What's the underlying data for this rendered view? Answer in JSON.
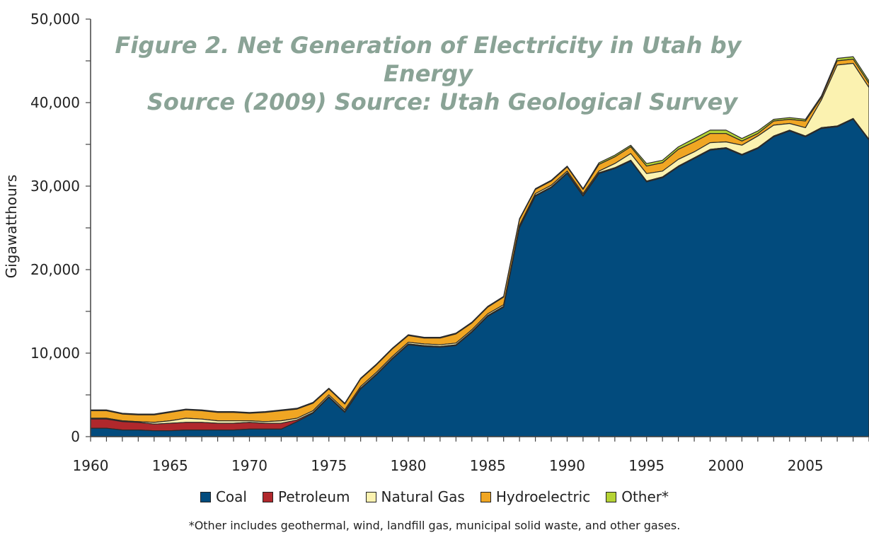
{
  "chart_data": {
    "type": "area",
    "stacked": true,
    "title": "Figure 2. Net Generation of Electricity in Utah by Energy",
    "title_line2": "Source (2009) Source: Utah Geological Survey",
    "xlabel": "",
    "ylabel": "Gigawatthours",
    "ylim": [
      0,
      50000
    ],
    "xlim": [
      1960,
      2009
    ],
    "x_ticks": [
      "1960",
      "1965",
      "1970",
      "1975",
      "1980",
      "1985",
      "1990",
      "1995",
      "2000",
      "2005"
    ],
    "y_ticks": [
      "0",
      "10,000",
      "20,000",
      "30,000",
      "40,000",
      "50,000"
    ],
    "grid": false,
    "legend_position": "bottom",
    "x": [
      1960,
      1961,
      1962,
      1963,
      1964,
      1965,
      1966,
      1967,
      1968,
      1969,
      1970,
      1971,
      1972,
      1973,
      1974,
      1975,
      1976,
      1977,
      1978,
      1979,
      1980,
      1981,
      1982,
      1983,
      1984,
      1985,
      1986,
      1987,
      1988,
      1989,
      1990,
      1991,
      1992,
      1993,
      1994,
      1995,
      1996,
      1997,
      1998,
      1999,
      2000,
      2001,
      2002,
      2003,
      2004,
      2005,
      2006,
      2007,
      2008,
      2009
    ],
    "series": [
      {
        "name": "Coal",
        "color": "#024b7d",
        "values": [
          1000,
          1000,
          800,
          800,
          700,
          700,
          800,
          800,
          800,
          800,
          900,
          900,
          900,
          1800,
          2800,
          4700,
          2900,
          5700,
          7400,
          9300,
          11000,
          10800,
          10700,
          10900,
          12500,
          14400,
          15500,
          25000,
          28800,
          29800,
          31500,
          28800,
          31500,
          32100,
          33000,
          30500,
          31000,
          32300,
          33300,
          34300,
          34500,
          33700,
          34500,
          35900,
          36600,
          35900,
          36900,
          37100,
          38000,
          35500
        ]
      },
      {
        "name": "Petroleum",
        "color": "#b0282c",
        "values": [
          1100,
          1100,
          1000,
          900,
          800,
          900,
          900,
          900,
          800,
          800,
          800,
          700,
          700,
          200,
          100,
          100,
          100,
          100,
          100,
          100,
          100,
          100,
          100,
          100,
          100,
          100,
          100,
          100,
          100,
          100,
          100,
          100,
          100,
          100,
          100,
          100,
          100,
          100,
          100,
          100,
          100,
          100,
          100,
          100,
          100,
          100,
          100,
          100,
          100,
          100
        ]
      },
      {
        "name": "Natural Gas",
        "color": "#fbf2b0",
        "values": [
          100,
          100,
          100,
          100,
          200,
          300,
          500,
          400,
          300,
          300,
          200,
          200,
          300,
          200,
          200,
          200,
          200,
          200,
          200,
          200,
          200,
          200,
          200,
          200,
          200,
          200,
          200,
          200,
          200,
          200,
          200,
          200,
          200,
          500,
          800,
          900,
          700,
          800,
          700,
          800,
          700,
          1100,
          1400,
          1300,
          800,
          1000,
          3300,
          7300,
          6600,
          6200
        ]
      },
      {
        "name": "Hydroelectric",
        "color": "#f0a623",
        "values": [
          900,
          900,
          800,
          800,
          900,
          1000,
          1000,
          1000,
          1000,
          1000,
          900,
          1100,
          1200,
          1100,
          900,
          700,
          700,
          900,
          900,
          900,
          800,
          700,
          800,
          1100,
          800,
          800,
          900,
          700,
          500,
          500,
          500,
          500,
          800,
          800,
          800,
          900,
          1000,
          1200,
          1200,
          1100,
          1000,
          500,
          300,
          500,
          500,
          800,
          300,
          500,
          500,
          500
        ]
      },
      {
        "name": "Other*",
        "color": "#b5d334",
        "values": [
          100,
          100,
          100,
          100,
          100,
          100,
          100,
          100,
          100,
          100,
          100,
          100,
          100,
          100,
          100,
          100,
          100,
          100,
          100,
          100,
          100,
          100,
          100,
          100,
          100,
          100,
          100,
          100,
          100,
          100,
          100,
          100,
          200,
          200,
          200,
          300,
          300,
          300,
          400,
          400,
          400,
          300,
          300,
          200,
          200,
          200,
          200,
          300,
          300,
          300
        ]
      }
    ],
    "footnote": "*Other includes geothermal, wind, landfill gas, municipal solid waste, and other gases."
  }
}
